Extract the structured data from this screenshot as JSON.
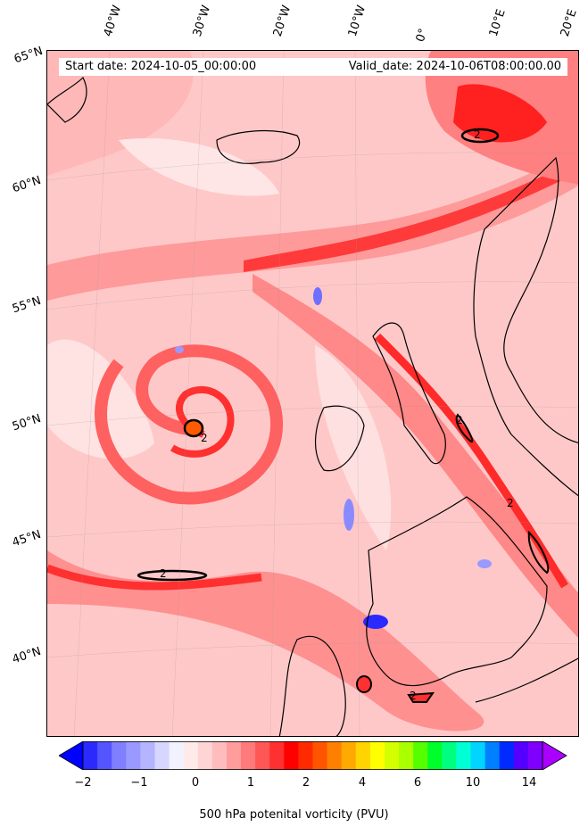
{
  "header": {
    "start_date": "Start date: 2024-10-05_00:00:00",
    "valid_date": "Valid_date: 2024-10-06T08:00:00.00"
  },
  "longitude_labels": [
    "40°W",
    "30°W",
    "20°W",
    "10°W",
    "0°",
    "10°E",
    "20°E"
  ],
  "latitude_labels": [
    "65°N",
    "60°N",
    "55°N",
    "50°N",
    "45°N",
    "40°N"
  ],
  "contour_label": "2",
  "colorbar": {
    "label": "500 hPa potenital vorticity (PVU)",
    "ticks": [
      "−2",
      "−1",
      "0",
      "1",
      "2",
      "4",
      "6",
      "10",
      "14"
    ],
    "colors": [
      "#0000ff",
      "#2a2aff",
      "#5555ff",
      "#7f7fff",
      "#9999ff",
      "#b4b4ff",
      "#d6d6ff",
      "#f2f2ff",
      "#ffeaea",
      "#ffd4d4",
      "#ffbcbc",
      "#ff9c9c",
      "#ff7a7a",
      "#ff5656",
      "#ff3030",
      "#ff0000",
      "#ff2a00",
      "#ff5500",
      "#ff8000",
      "#ffaa00",
      "#ffd400",
      "#ffff00",
      "#d4ff00",
      "#aaff00",
      "#55ff00",
      "#00ff2a",
      "#00ff80",
      "#00ffd4",
      "#00d4ff",
      "#0080ff",
      "#002aff",
      "#5500ff",
      "#8000ff",
      "#aa00ff"
    ]
  },
  "colors": {
    "background_pv": "#ffd4d4",
    "strong_pv": "#ff3030",
    "negative_pv": "#6f6fff",
    "coastline": "#000000"
  }
}
